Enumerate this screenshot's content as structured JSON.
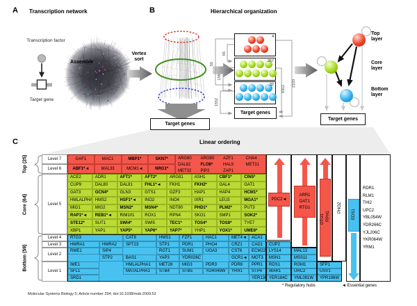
{
  "figure": {
    "citation": "Molecular Systems Biology 5; Article number 294; doi:10.1038/msb.2009.52",
    "colors": {
      "top_layer": "#f3574b",
      "core_layer": "#bada35",
      "bottom_layer": "#47c2f0",
      "arrow_red": "#f4574a",
      "gray_arrow": "#8f8f8f"
    }
  },
  "panelA": {
    "label": "A",
    "title": "Transcription network",
    "tf_label": "Transcription factor",
    "assemble": "Assemble",
    "target_gene": "Target gene"
  },
  "panelB": {
    "label": "B",
    "title": "Hierarchical organization",
    "vertex_sort": "Vertex sort",
    "target_genes": "Target genes",
    "boxes": [
      {
        "layer": "top",
        "count": "4"
      },
      {
        "layer": "core",
        "count": "267"
      },
      {
        "layer": "bottom",
        "count": "32"
      }
    ],
    "edge_labels": {
      "top_core": "65",
      "top_bottom": "50",
      "core_bottom": "158",
      "bottom_tg": "1552",
      "core_tg": "9312",
      "top_tg": "2103"
    },
    "layer_labels": [
      "Top layer",
      "Core layer",
      "Bottom layer"
    ]
  },
  "panelC": {
    "label": "C",
    "title": "Linear ordering",
    "groups": [
      {
        "label": "Top (25)"
      },
      {
        "label": "Core (64)"
      },
      {
        "label": "Bottom (59)"
      }
    ],
    "level_labels": [
      "Level 7",
      "Level 6",
      "Level 5",
      "Level 4",
      "Level 3",
      "Level 2",
      "Level 1"
    ],
    "top_block": {
      "level7": [
        "GAF1",
        "MAC1",
        "MBP1*",
        "SKN7*"
      ],
      "level6": [
        "ABF1*◄",
        "MAL33",
        "MCM1◄",
        "NRG1*"
      ],
      "merged": [
        [
          "ARG80",
          "ARO80",
          "AZF1",
          "CHA4"
        ],
        [
          "DAL82",
          "FLO8*",
          "HAL9",
          "MET31"
        ],
        [
          "MET32",
          "PIP2",
          "ZAP1"
        ]
      ]
    },
    "core_block": {
      "rows": [
        [
          "ACE2",
          "ADR1",
          "AFT1*",
          "AFT2*",
          "ARG81",
          "ASH1",
          "CBF1*",
          "CIN5*"
        ],
        [
          "CUP9",
          "DAL80",
          "DAL81",
          "FHL1*◄",
          "FKH1",
          "FKH2*",
          "GAL4",
          "GAT1"
        ],
        [
          "GAT3",
          "GCN4*",
          "GLN3",
          "GTS1",
          "GZF3",
          "HAP1",
          "HAP4",
          "HCM1*"
        ],
        [
          "HMLALPHA2",
          "HMS2",
          "HSF1*◄",
          "INO2",
          "INO4",
          "IXR1",
          "LEU3",
          "MGA1*"
        ],
        [
          "MIG1",
          "MIG2",
          "MSN2*",
          "MSN4*",
          "NDT80",
          "PHD1*",
          "PLM2*",
          "PUT3"
        ],
        [
          "RAP1*◄",
          "REB1*◄",
          "RIM101",
          "ROX1",
          "RPN4",
          "SKO1",
          "SMP1",
          "SOK2*"
        ],
        [
          "STE12*",
          "SUT1",
          "SWI4*",
          "SWI5",
          "TEC1*",
          "TOS4*",
          "TOS8*",
          "TYE7"
        ],
        [
          "XBP1",
          "YAP1",
          "YAP5*",
          "YAP6*",
          "YAP7*",
          "YHP1",
          "YOX1*",
          "UME6*"
        ]
      ]
    },
    "bottom_block": {
      "columns": [
        {
          "cells": [
            [
              1,
              "RTG3"
            ],
            [
              2,
              "HMRA1"
            ],
            [
              3,
              "RME1"
            ],
            [
              5,
              "IME1"
            ],
            [
              6,
              "SFL1"
            ],
            [
              7,
              "SRD1"
            ]
          ]
        },
        {
          "cells": [
            [
              2,
              "HMRA2"
            ],
            [
              3,
              "SIP4"
            ],
            [
              4,
              "STP2"
            ]
          ]
        },
        {
          "cells": [
            [
              1,
              "CAT8"
            ],
            [
              2,
              "SPT23"
            ],
            [
              4,
              "BAS1"
            ],
            [
              5,
              "HMLALPHA1"
            ],
            [
              6,
              "MATALPHA1"
            ]
          ]
        },
        {
          "cells": [
            [
              1,
              "HMS1"
            ],
            [
              2,
              "STP1"
            ],
            [
              3,
              "RGT1"
            ],
            [
              4,
              "YAP3"
            ],
            [
              5,
              "MET28"
            ],
            [
              6,
              "STB4"
            ]
          ]
        },
        {
          "cells": [
            [
              1,
              "FZF1"
            ],
            [
              2,
              "PDR1"
            ],
            [
              3,
              "SUM1"
            ],
            [
              4,
              "YDR026C"
            ],
            [
              5,
              "MIG3"
            ],
            [
              6,
              "STB5"
            ]
          ]
        },
        {
          "cells": [
            [
              1,
              "HAC1"
            ],
            [
              2,
              "PHO4"
            ],
            [
              3,
              "UGA3"
            ],
            [
              5,
              "PDR3"
            ],
            [
              6,
              "YDR049W"
            ]
          ]
        },
        {
          "cells": [
            [
              1,
              "MET4◄"
            ],
            [
              2,
              "CRZ1"
            ],
            [
              3,
              "CST6"
            ],
            [
              4,
              "GCR1◄"
            ],
            [
              5,
              "PDR8"
            ],
            [
              6,
              "YRR1"
            ]
          ]
        },
        {
          "cells": [
            [
              1,
              "ACA1"
            ],
            [
              2,
              "CAD1"
            ],
            [
              3,
              "ECM22"
            ],
            [
              4,
              "MOT3"
            ],
            [
              5,
              "PPR1"
            ],
            [
              6,
              "STP4"
            ],
            [
              7,
              "YER130C"
            ]
          ]
        },
        {
          "cells": [
            [
              2,
              "CUP2"
            ],
            [
              3,
              "LYS14"
            ],
            [
              4,
              "MSN1"
            ],
            [
              5,
              "RDS1"
            ],
            [
              6,
              "WAR1"
            ],
            [
              7,
              "YER184C"
            ]
          ]
        },
        {
          "cells": [
            [
              3,
              "MAL13"
            ],
            [
              4,
              "MSS11"
            ],
            [
              5,
              "RGM1"
            ],
            [
              6,
              "URC2"
            ],
            [
              7,
              "YML081W"
            ]
          ]
        },
        {
          "cells": [
            [
              5,
              "SFP1"
            ],
            [
              6,
              "USV1"
            ],
            [
              7,
              "YPR196W"
            ]
          ]
        }
      ]
    },
    "side_columns": [
      {
        "type": "red-up-arrow",
        "labels": [
          "PDC2◄"
        ]
      },
      {
        "type": "red-up-arrow",
        "labels": [
          "ARR1",
          "DAT1",
          "RTG1"
        ]
      },
      {
        "type": "red-up-arrow",
        "labels": [
          "OTU1",
          "RPH1"
        ]
      },
      {
        "type": "plain",
        "labels": [
          "PHO2"
        ]
      },
      {
        "type": "blue-down-arrow",
        "labels": [
          "EDS1"
        ]
      },
      {
        "type": "unclassified-list",
        "genes": [
          "RDR1",
          "RLM1",
          "THI2",
          "UPC2",
          "YBL054W",
          "YDR266C",
          "YJL206C",
          "YKR064W",
          "YRM1"
        ]
      }
    ],
    "legend": {
      "hubs": "* Regulatory hubs",
      "essential": "◄ Essential genes"
    }
  }
}
